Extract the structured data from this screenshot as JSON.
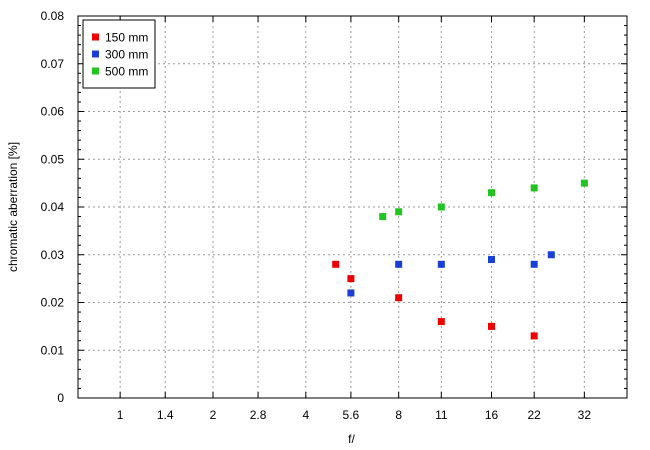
{
  "chart_data": {
    "type": "scatter",
    "xlabel": "f/",
    "ylabel": "chromatic  aberration [%]",
    "x_scale": "log2",
    "x_ticks": [
      {
        "value": 1,
        "label": "1"
      },
      {
        "value": 1.4,
        "label": "1.4"
      },
      {
        "value": 2,
        "label": "2"
      },
      {
        "value": 2.8,
        "label": "2.8"
      },
      {
        "value": 4,
        "label": "4"
      },
      {
        "value": 5.6,
        "label": "5.6"
      },
      {
        "value": 8,
        "label": "8"
      },
      {
        "value": 11,
        "label": "11"
      },
      {
        "value": 16,
        "label": "16"
      },
      {
        "value": 22,
        "label": "22"
      },
      {
        "value": 32,
        "label": "32"
      }
    ],
    "xlim": [
      0.73,
      44
    ],
    "ylim": [
      0,
      0.08
    ],
    "y_ticks": [
      {
        "value": 0,
        "label": "0"
      },
      {
        "value": 0.01,
        "label": "0.01"
      },
      {
        "value": 0.02,
        "label": "0.02"
      },
      {
        "value": 0.03,
        "label": "0.03"
      },
      {
        "value": 0.04,
        "label": "0.04"
      },
      {
        "value": 0.05,
        "label": "0.05"
      },
      {
        "value": 0.06,
        "label": "0.06"
      },
      {
        "value": 0.07,
        "label": "0.07"
      },
      {
        "value": 0.08,
        "label": "0.08"
      }
    ],
    "grid": true,
    "legend_position": "top-left",
    "series": [
      {
        "name": "150 mm",
        "color": "#ee0000",
        "points": [
          [
            5,
            0.028
          ],
          [
            5.6,
            0.025
          ],
          [
            8,
            0.021
          ],
          [
            11,
            0.016
          ],
          [
            16,
            0.015
          ],
          [
            22,
            0.013
          ]
        ]
      },
      {
        "name": "300 mm",
        "color": "#1a3fd6",
        "points": [
          [
            5.6,
            0.022
          ],
          [
            8,
            0.028
          ],
          [
            11,
            0.028
          ],
          [
            16,
            0.029
          ],
          [
            22,
            0.028
          ],
          [
            25,
            0.03
          ]
        ]
      },
      {
        "name": "500 mm",
        "color": "#22c422",
        "points": [
          [
            7.1,
            0.038
          ],
          [
            8,
            0.039
          ],
          [
            11,
            0.04
          ],
          [
            16,
            0.043
          ],
          [
            22,
            0.044
          ],
          [
            32,
            0.045
          ]
        ]
      }
    ]
  }
}
